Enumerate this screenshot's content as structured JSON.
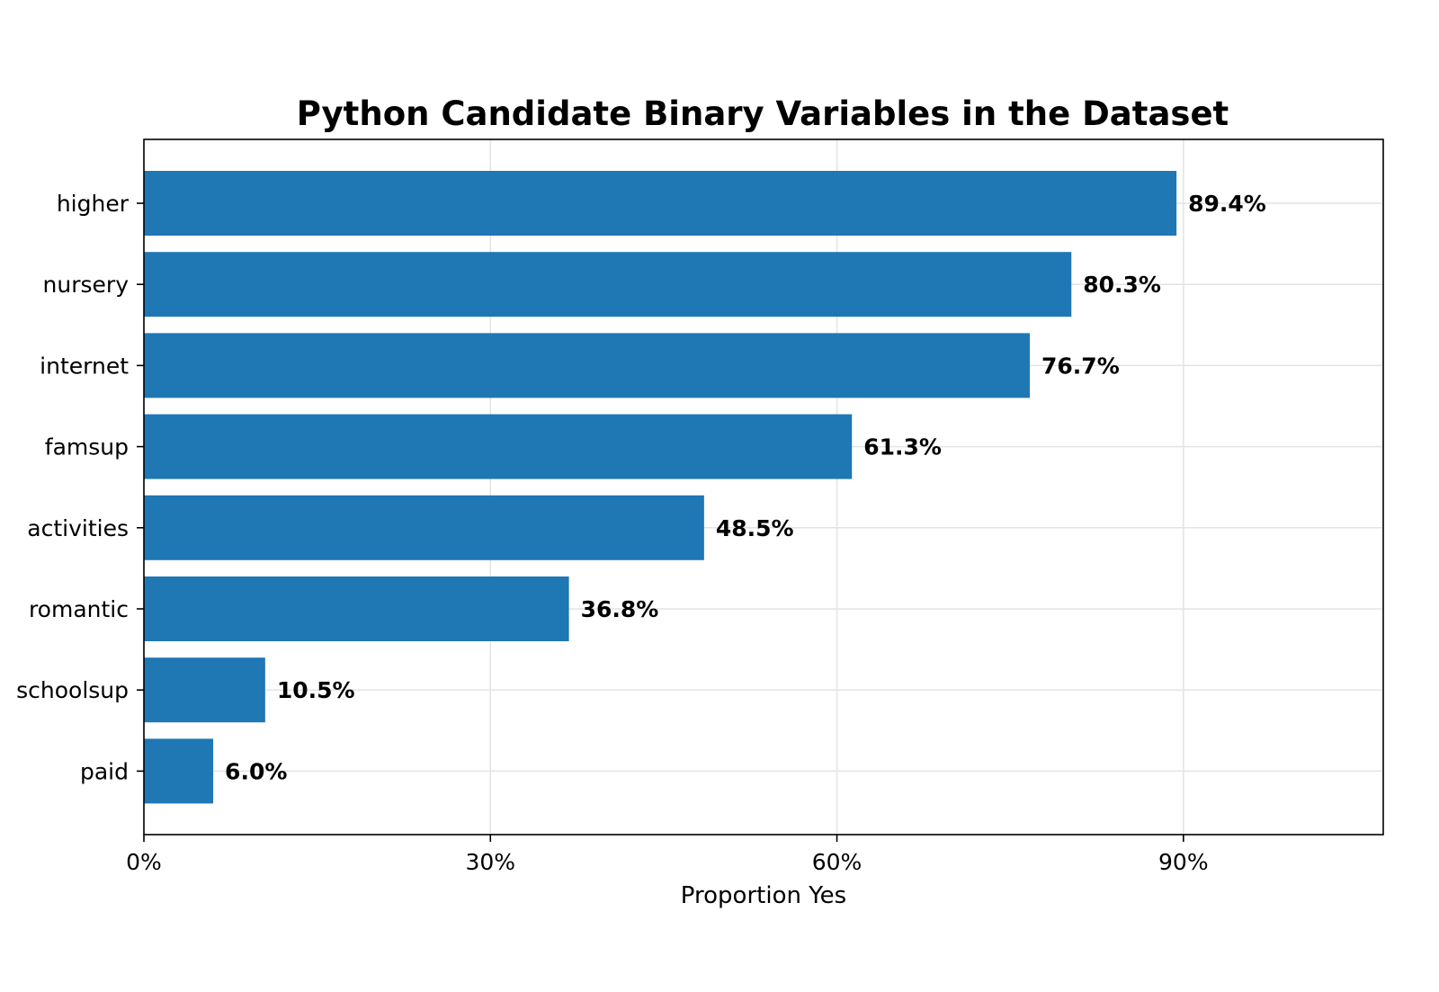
{
  "chart_data": {
    "type": "bar",
    "orientation": "horizontal",
    "title": "Python Candidate Binary Variables in the Dataset",
    "xlabel": "Proportion Yes",
    "ylabel": "",
    "categories": [
      "higher",
      "nursery",
      "internet",
      "famsup",
      "activities",
      "romantic",
      "schoolsup",
      "paid"
    ],
    "values": [
      89.4,
      80.3,
      76.7,
      61.3,
      48.5,
      36.8,
      10.5,
      6.0
    ],
    "data_labels": [
      "89.4%",
      "80.3%",
      "76.7%",
      "61.3%",
      "48.5%",
      "36.8%",
      "10.5%",
      "6.0%"
    ],
    "xticks": [
      0,
      30,
      60,
      90
    ],
    "xtick_labels": [
      "0%",
      "30%",
      "60%",
      "90%"
    ],
    "xlim": [
      0,
      107.3
    ],
    "grid": true,
    "legend": false,
    "colors": {
      "bar": "#1f77b4"
    }
  }
}
